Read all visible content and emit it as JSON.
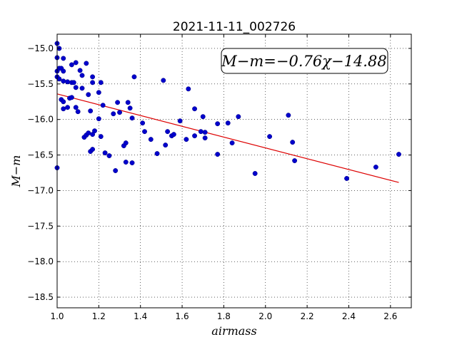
{
  "chart_data": {
    "type": "scatter",
    "title": "2021-11-11_002726",
    "xlabel": "airmass",
    "ylabel": "M−m",
    "xlim": [
      1.0,
      2.7
    ],
    "ylim": [
      -18.65,
      -14.8
    ],
    "y_inverted": true,
    "grid": true,
    "grid_style": "dotted",
    "xticks": [
      1.0,
      1.2,
      1.4,
      1.6,
      1.8,
      2.0,
      2.2,
      2.4,
      2.6
    ],
    "xtick_labels": [
      "1.0",
      "1.2",
      "1.4",
      "1.6",
      "1.8",
      "2.0",
      "2.2",
      "2.4",
      "2.6"
    ],
    "yticks": [
      -15.0,
      -15.5,
      -16.0,
      -16.5,
      -17.0,
      -17.5,
      -18.0,
      -18.5
    ],
    "ytick_labels": [
      "−15.0",
      "−15.5",
      "−16.0",
      "−16.5",
      "−17.0",
      "−17.5",
      "−18.0",
      "−18.5"
    ],
    "annotation": "M−m=−0.76χ−14.88",
    "annotation_position": "top-right",
    "points_color": "#0000cc",
    "fit_color": "#dd0000",
    "fit": {
      "slope": -0.76,
      "intercept": -14.88,
      "x_range": [
        1.0,
        2.64
      ]
    },
    "points": [
      [
        1.0,
        -14.93
      ],
      [
        1.0,
        -15.13
      ],
      [
        1.0,
        -15.32
      ],
      [
        1.0,
        -15.4
      ],
      [
        1.0,
        -16.68
      ],
      [
        1.01,
        -15.0
      ],
      [
        1.01,
        -15.28
      ],
      [
        1.01,
        -15.43
      ],
      [
        1.02,
        -15.28
      ],
      [
        1.02,
        -15.72
      ],
      [
        1.03,
        -15.14
      ],
      [
        1.03,
        -15.32
      ],
      [
        1.03,
        -15.46
      ],
      [
        1.03,
        -15.75
      ],
      [
        1.03,
        -15.85
      ],
      [
        1.05,
        -15.47
      ],
      [
        1.05,
        -15.83
      ],
      [
        1.06,
        -15.7
      ],
      [
        1.07,
        -15.48
      ],
      [
        1.07,
        -15.69
      ],
      [
        1.07,
        -15.23
      ],
      [
        1.08,
        -15.48
      ],
      [
        1.09,
        -15.2
      ],
      [
        1.09,
        -15.55
      ],
      [
        1.09,
        -15.83
      ],
      [
        1.1,
        -15.89
      ],
      [
        1.11,
        -15.31
      ],
      [
        1.12,
        -15.56
      ],
      [
        1.12,
        -15.38
      ],
      [
        1.13,
        -16.25
      ],
      [
        1.14,
        -15.21
      ],
      [
        1.14,
        -16.22
      ],
      [
        1.15,
        -15.65
      ],
      [
        1.15,
        -16.19
      ],
      [
        1.16,
        -15.88
      ],
      [
        1.16,
        -16.45
      ],
      [
        1.17,
        -16.21
      ],
      [
        1.17,
        -16.42
      ],
      [
        1.17,
        -15.4
      ],
      [
        1.17,
        -15.48
      ],
      [
        1.18,
        -16.16
      ],
      [
        1.2,
        -15.62
      ],
      [
        1.2,
        -15.99
      ],
      [
        1.21,
        -16.24
      ],
      [
        1.21,
        -15.48
      ],
      [
        1.22,
        -15.8
      ],
      [
        1.23,
        -16.47
      ],
      [
        1.25,
        -16.51
      ],
      [
        1.27,
        -15.92
      ],
      [
        1.28,
        -16.72
      ],
      [
        1.29,
        -15.76
      ],
      [
        1.3,
        -15.9
      ],
      [
        1.32,
        -16.37
      ],
      [
        1.33,
        -16.33
      ],
      [
        1.33,
        -16.6
      ],
      [
        1.34,
        -15.76
      ],
      [
        1.35,
        -15.84
      ],
      [
        1.36,
        -15.98
      ],
      [
        1.36,
        -16.61
      ],
      [
        1.37,
        -15.4
      ],
      [
        1.41,
        -16.05
      ],
      [
        1.42,
        -16.17
      ],
      [
        1.45,
        -16.28
      ],
      [
        1.48,
        -16.48
      ],
      [
        1.51,
        -15.45
      ],
      [
        1.52,
        -16.36
      ],
      [
        1.53,
        -16.17
      ],
      [
        1.55,
        -16.23
      ],
      [
        1.56,
        -16.21
      ],
      [
        1.59,
        -16.02
      ],
      [
        1.62,
        -16.28
      ],
      [
        1.63,
        -15.57
      ],
      [
        1.66,
        -15.85
      ],
      [
        1.66,
        -16.23
      ],
      [
        1.69,
        -16.17
      ],
      [
        1.7,
        -15.96
      ],
      [
        1.71,
        -16.18
      ],
      [
        1.71,
        -16.26
      ],
      [
        1.77,
        -16.06
      ],
      [
        1.77,
        -16.49
      ],
      [
        1.82,
        -16.05
      ],
      [
        1.84,
        -16.33
      ],
      [
        1.87,
        -15.96
      ],
      [
        1.95,
        -16.76
      ],
      [
        2.02,
        -16.24
      ],
      [
        2.11,
        -15.94
      ],
      [
        2.13,
        -16.32
      ],
      [
        2.14,
        -16.58
      ],
      [
        2.39,
        -16.83
      ],
      [
        2.53,
        -16.67
      ],
      [
        2.64,
        -16.49
      ]
    ]
  }
}
